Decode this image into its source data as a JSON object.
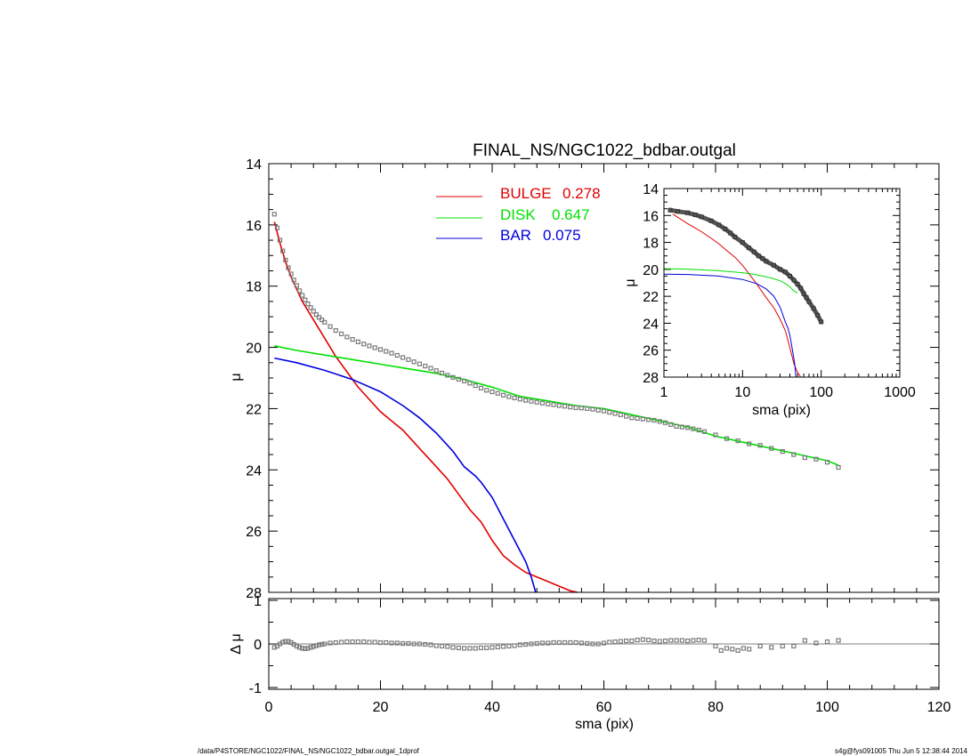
{
  "colors": {
    "bulge": "#e00000",
    "disk": "#00e000",
    "bar": "#0000e0",
    "data": "#7a7a7a"
  },
  "footer": {
    "left": "/data/P4STORE/NGC1022/FINAL_NS/NGC1022_bdbar.outgal_1dprof",
    "right": "s4g@fys091005  Thu Jun  5 12:38:44 2014"
  },
  "chart_data": [
    {
      "type": "line",
      "id": "main",
      "title": "FINAL_NS/NGC1022_bdbar.outgal",
      "xlabel": "",
      "ylabel": "μ",
      "xlim": [
        0,
        120
      ],
      "ylim": [
        28,
        14
      ],
      "y_reversed": true,
      "yticks": [
        14,
        16,
        18,
        20,
        22,
        24,
        26,
        28
      ],
      "legend": [
        {
          "name": "BULGE",
          "value": "0.278",
          "color": "#e00000"
        },
        {
          "name": "DISK",
          "value": "0.647",
          "color": "#00e000"
        },
        {
          "name": "BAR",
          "value": "0.075",
          "color": "#0000e0"
        }
      ],
      "series": [
        {
          "name": "BULGE",
          "x": [
            1,
            2,
            3,
            4,
            5,
            6,
            8,
            10,
            12,
            14,
            16,
            18,
            20,
            22,
            24,
            26,
            28,
            30,
            32,
            34,
            36,
            38,
            40,
            42,
            44,
            46,
            48,
            50,
            52,
            54,
            55.3
          ],
          "y": [
            15.9,
            16.6,
            17.2,
            17.7,
            18.1,
            18.5,
            19.1,
            19.7,
            20.3,
            20.8,
            21.3,
            21.7,
            22.1,
            22.4,
            22.7,
            23.1,
            23.5,
            23.9,
            24.3,
            24.8,
            25.3,
            25.7,
            26.3,
            26.8,
            27.1,
            27.35,
            27.5,
            27.65,
            27.8,
            27.95,
            28.0
          ]
        },
        {
          "name": "DISK",
          "x": [
            1,
            5,
            10,
            15,
            20,
            25,
            30,
            35,
            40,
            45,
            50,
            55,
            60,
            65,
            70,
            75,
            80,
            85,
            90,
            95,
            100,
            102
          ],
          "y": [
            19.95,
            20.1,
            20.25,
            20.4,
            20.55,
            20.7,
            20.85,
            21.05,
            21.3,
            21.6,
            21.75,
            21.9,
            22.0,
            22.2,
            22.4,
            22.6,
            22.9,
            23.1,
            23.3,
            23.5,
            23.7,
            23.85
          ]
        },
        {
          "name": "BAR",
          "x": [
            1,
            5,
            10,
            15,
            20,
            24,
            27,
            30,
            33,
            35,
            37,
            38,
            40,
            42,
            44,
            46,
            47,
            47.8
          ],
          "y": [
            20.35,
            20.5,
            20.75,
            21.05,
            21.45,
            21.9,
            22.3,
            22.8,
            23.4,
            23.9,
            24.2,
            24.4,
            24.9,
            25.6,
            26.3,
            27.0,
            27.5,
            28.0
          ]
        },
        {
          "name": "data",
          "marker": "square",
          "x": [
            1,
            1.5,
            2,
            2.5,
            3,
            3.5,
            4,
            4.5,
            5,
            5.5,
            6,
            6.5,
            7,
            7.5,
            8,
            8.5,
            9,
            9.5,
            10,
            11,
            12,
            13,
            14,
            15,
            16,
            17,
            18,
            19,
            20,
            21,
            22,
            23,
            24,
            25,
            26,
            27,
            28,
            29,
            30,
            31,
            32,
            33,
            34,
            35,
            36,
            37,
            38,
            39,
            40,
            41,
            42,
            43,
            44,
            45,
            46,
            47,
            48,
            49,
            50,
            51,
            52,
            53,
            54,
            55,
            56,
            57,
            58,
            59,
            60,
            61,
            62,
            63,
            64,
            65,
            66,
            67,
            68,
            69,
            70,
            71,
            72,
            73,
            74,
            75,
            76,
            77,
            78,
            80,
            82,
            84,
            86,
            88,
            90,
            92,
            94,
            96,
            98,
            100,
            102
          ],
          "y": [
            15.65,
            16.1,
            16.5,
            16.85,
            17.15,
            17.4,
            17.6,
            17.8,
            17.98,
            18.15,
            18.3,
            18.45,
            18.58,
            18.7,
            18.82,
            18.93,
            19.02,
            19.1,
            19.18,
            19.32,
            19.45,
            19.56,
            19.66,
            19.74,
            19.82,
            19.89,
            19.95,
            20.01,
            20.07,
            20.13,
            20.19,
            20.26,
            20.33,
            20.4,
            20.47,
            20.54,
            20.61,
            20.68,
            20.76,
            20.84,
            20.91,
            20.98,
            21.04,
            21.1,
            21.17,
            21.25,
            21.33,
            21.4,
            21.45,
            21.5,
            21.56,
            21.61,
            21.65,
            21.69,
            21.73,
            21.76,
            21.79,
            21.82,
            21.85,
            21.87,
            21.9,
            21.92,
            21.95,
            21.97,
            21.98,
            22.0,
            22.02,
            22.05,
            22.08,
            22.12,
            22.16,
            22.2,
            22.25,
            22.3,
            22.32,
            22.34,
            22.36,
            22.38,
            22.42,
            22.46,
            22.52,
            22.58,
            22.6,
            22.62,
            22.66,
            22.7,
            22.75,
            22.86,
            22.98,
            23.05,
            23.15,
            23.2,
            23.3,
            23.4,
            23.5,
            23.6,
            23.65,
            23.75,
            23.92
          ]
        }
      ]
    },
    {
      "type": "line",
      "id": "residual",
      "xlabel": "sma (pix)",
      "ylabel": "Δ μ",
      "xlim": [
        0,
        120
      ],
      "ylim": [
        -1,
        1
      ],
      "xticks": [
        0,
        20,
        40,
        60,
        80,
        100,
        120
      ],
      "yticks": [
        1,
        0,
        -1
      ],
      "series": [
        {
          "name": "residual",
          "marker": "square",
          "x": [
            1,
            1.5,
            2,
            2.5,
            3,
            3.5,
            4,
            4.5,
            5,
            5.5,
            6,
            6.5,
            7,
            7.5,
            8,
            8.5,
            9,
            9.5,
            10,
            11,
            12,
            13,
            14,
            15,
            16,
            17,
            18,
            19,
            20,
            21,
            22,
            23,
            24,
            25,
            26,
            27,
            28,
            29,
            30,
            31,
            32,
            33,
            34,
            35,
            36,
            37,
            38,
            39,
            40,
            41,
            42,
            43,
            44,
            45,
            46,
            47,
            48,
            49,
            50,
            51,
            52,
            53,
            54,
            55,
            56,
            57,
            58,
            59,
            60,
            61,
            62,
            63,
            64,
            65,
            66,
            67,
            68,
            69,
            70,
            71,
            72,
            73,
            74,
            75,
            76,
            77,
            78,
            80,
            81,
            82,
            83,
            84,
            85,
            86,
            88,
            90,
            92,
            94,
            96,
            98,
            100,
            102
          ],
          "y": [
            -0.08,
            -0.05,
            0.0,
            0.04,
            0.06,
            0.06,
            0.03,
            -0.01,
            -0.05,
            -0.08,
            -0.1,
            -0.11,
            -0.1,
            -0.08,
            -0.06,
            -0.04,
            -0.02,
            -0.01,
            0.0,
            0.02,
            0.03,
            0.04,
            0.05,
            0.05,
            0.05,
            0.05,
            0.04,
            0.04,
            0.03,
            0.03,
            0.02,
            0.02,
            0.01,
            0.01,
            0.0,
            0.0,
            -0.01,
            -0.02,
            -0.04,
            -0.05,
            -0.06,
            -0.08,
            -0.09,
            -0.1,
            -0.1,
            -0.1,
            -0.09,
            -0.09,
            -0.08,
            -0.07,
            -0.06,
            -0.05,
            -0.04,
            -0.02,
            -0.01,
            0.0,
            0.01,
            0.02,
            0.02,
            0.03,
            0.03,
            0.03,
            0.03,
            0.03,
            0.02,
            0.01,
            0.0,
            0.0,
            0.02,
            0.04,
            0.05,
            0.06,
            0.07,
            0.07,
            0.09,
            0.1,
            0.09,
            0.07,
            0.06,
            0.07,
            0.08,
            0.08,
            0.08,
            0.07,
            0.08,
            0.09,
            0.08,
            -0.05,
            -0.15,
            -0.1,
            -0.12,
            -0.15,
            -0.1,
            -0.12,
            -0.05,
            -0.08,
            -0.05,
            -0.05,
            0.08,
            0.02,
            0.05,
            0.08
          ]
        }
      ]
    },
    {
      "type": "line",
      "id": "inset",
      "xlabel": "sma (pix)",
      "ylabel": "μ",
      "xscale": "log",
      "xlim": [
        1,
        1000
      ],
      "ylim": [
        28,
        14
      ],
      "y_reversed": true,
      "xticks": [
        1,
        10,
        100,
        1000
      ],
      "yticks": [
        14,
        16,
        18,
        20,
        22,
        24,
        26,
        28
      ],
      "series": [
        {
          "name": "BULGE",
          "x": [
            1.3,
            2,
            3,
            4,
            5,
            6,
            8,
            10,
            12,
            15,
            20,
            25,
            30,
            35,
            40,
            45,
            50,
            55
          ],
          "y": [
            15.9,
            16.6,
            17.2,
            17.7,
            18.1,
            18.5,
            19.1,
            19.7,
            20.3,
            21.05,
            22.1,
            22.85,
            23.7,
            24.55,
            25.8,
            27.0,
            27.65,
            28.0
          ]
        },
        {
          "name": "DISK",
          "x": [
            1,
            2,
            5,
            10,
            15,
            20,
            25,
            30,
            35,
            40,
            45,
            50
          ],
          "y": [
            19.95,
            19.98,
            20.1,
            20.25,
            20.4,
            20.55,
            20.7,
            20.85,
            21.05,
            21.3,
            21.6,
            21.75
          ]
        },
        {
          "name": "BAR",
          "x": [
            1,
            2,
            5,
            10,
            15,
            20,
            25,
            30,
            35,
            38,
            40,
            42,
            44,
            46,
            47.8
          ],
          "y": [
            20.35,
            20.38,
            20.5,
            20.75,
            21.05,
            21.45,
            22.0,
            22.8,
            23.9,
            24.4,
            24.9,
            25.6,
            26.3,
            27.0,
            28.0
          ]
        },
        {
          "name": "data",
          "marker": "square",
          "x": [
            1.2,
            1.5,
            2,
            2.5,
            3,
            4,
            5,
            6,
            7,
            8,
            10,
            12,
            14,
            16,
            18,
            20,
            25,
            30,
            35,
            40,
            45,
            50,
            55,
            60,
            65,
            70,
            80,
            90,
            100
          ],
          "y": [
            15.6,
            15.7,
            15.8,
            15.95,
            16.1,
            16.4,
            16.7,
            17.0,
            17.3,
            17.6,
            18.0,
            18.4,
            18.7,
            19.0,
            19.2,
            19.4,
            19.7,
            20.0,
            20.2,
            20.5,
            20.8,
            21.1,
            21.4,
            21.8,
            22.1,
            22.4,
            22.9,
            23.4,
            23.9
          ]
        }
      ]
    }
  ]
}
